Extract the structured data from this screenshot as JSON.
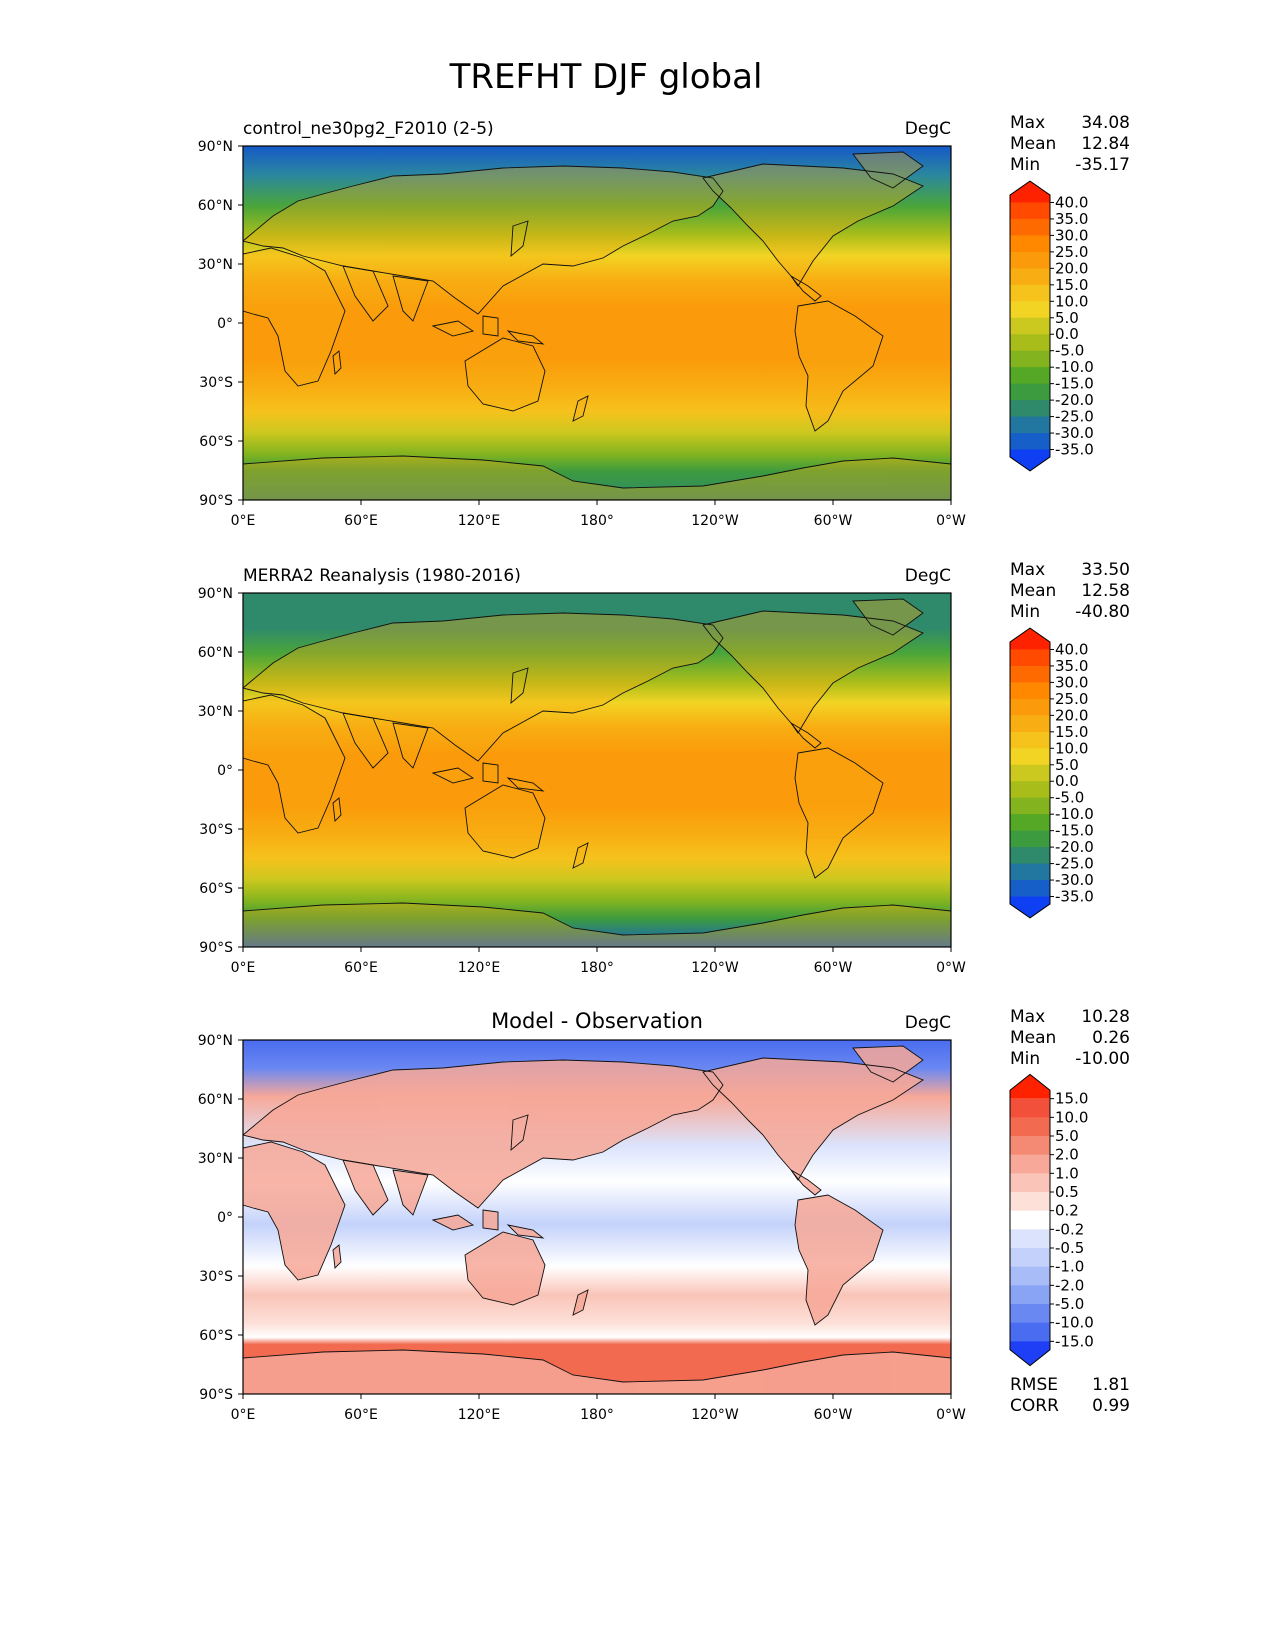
{
  "figure": {
    "title": "TREFHT DJF global"
  },
  "lat_ticks": [
    "90°N",
    "60°N",
    "30°N",
    "0°",
    "30°S",
    "60°S",
    "90°S"
  ],
  "lon_ticks": [
    "0°E",
    "60°E",
    "120°E",
    "180°",
    "120°W",
    "60°W",
    "0°W"
  ],
  "chart_data": [
    {
      "type": "heatmap",
      "left_title": "control_ne30pg2_F2010 (2-5)",
      "center_title": "",
      "units": "DegC",
      "stats": {
        "max_label": "Max",
        "mean_label": "Mean",
        "min_label": "Min",
        "max": "34.08",
        "mean": "12.84",
        "min": "-35.17"
      },
      "colorbar": {
        "levels": [
          "40.0",
          "35.0",
          "30.0",
          "25.0",
          "20.0",
          "15.0",
          "10.0",
          "5.0",
          "0.0",
          "-5.0",
          "-10.0",
          "-15.0",
          "-20.0",
          "-25.0",
          "-30.0",
          "-35.0"
        ],
        "colors": [
          "#ff2200",
          "#ff4a00",
          "#ff6a00",
          "#ff8800",
          "#fb9a0a",
          "#f8ad12",
          "#f6c21c",
          "#f2d424",
          "#cbc81f",
          "#a8bd1a",
          "#83b41f",
          "#54a826",
          "#3c9b3e",
          "#2e8a6a",
          "#2277a0",
          "#165fc8",
          "#0f3ff2"
        ]
      },
      "xlim": [
        0,
        360
      ],
      "ylim": [
        -90,
        90
      ]
    },
    {
      "type": "heatmap",
      "left_title": "MERRA2 Reanalysis (1980-2016)",
      "center_title": "",
      "units": "DegC",
      "stats": {
        "max_label": "Max",
        "mean_label": "Mean",
        "min_label": "Min",
        "max": "33.50",
        "mean": "12.58",
        "min": "-40.80"
      },
      "colorbar": {
        "levels": [
          "40.0",
          "35.0",
          "30.0",
          "25.0",
          "20.0",
          "15.0",
          "10.0",
          "5.0",
          "0.0",
          "-5.0",
          "-10.0",
          "-15.0",
          "-20.0",
          "-25.0",
          "-30.0",
          "-35.0"
        ],
        "colors": [
          "#ff2200",
          "#ff4a00",
          "#ff6a00",
          "#ff8800",
          "#fb9a0a",
          "#f8ad12",
          "#f6c21c",
          "#f2d424",
          "#cbc81f",
          "#a8bd1a",
          "#83b41f",
          "#54a826",
          "#3c9b3e",
          "#2e8a6a",
          "#2277a0",
          "#165fc8",
          "#0f3ff2"
        ]
      },
      "xlim": [
        0,
        360
      ],
      "ylim": [
        -90,
        90
      ]
    },
    {
      "type": "heatmap",
      "left_title": "",
      "center_title": "Model - Observation",
      "units": "DegC",
      "stats": {
        "max_label": "Max",
        "mean_label": "Mean",
        "min_label": "Min",
        "max": "10.28",
        "mean": "0.26",
        "min": "-10.00"
      },
      "metrics": {
        "rmse_label": "RMSE",
        "corr_label": "CORR",
        "rmse": "1.81",
        "corr": "0.99"
      },
      "colorbar": {
        "levels": [
          "15.0",
          "10.0",
          "5.0",
          "2.0",
          "1.0",
          "0.5",
          "0.2",
          "-0.2",
          "-0.5",
          "-1.0",
          "-2.0",
          "-5.0",
          "-10.0",
          "-15.0"
        ],
        "colors": [
          "#ff2200",
          "#f2503a",
          "#f26a50",
          "#f48a74",
          "#f7a898",
          "#fac4b8",
          "#fde0d8",
          "#ffffff",
          "#dce4fd",
          "#c4d2fb",
          "#a8bcf8",
          "#8aa4f5",
          "#6a88f2",
          "#4a6cf0",
          "#1e3ff5"
        ]
      },
      "xlim": [
        0,
        360
      ],
      "ylim": [
        -90,
        90
      ]
    }
  ]
}
